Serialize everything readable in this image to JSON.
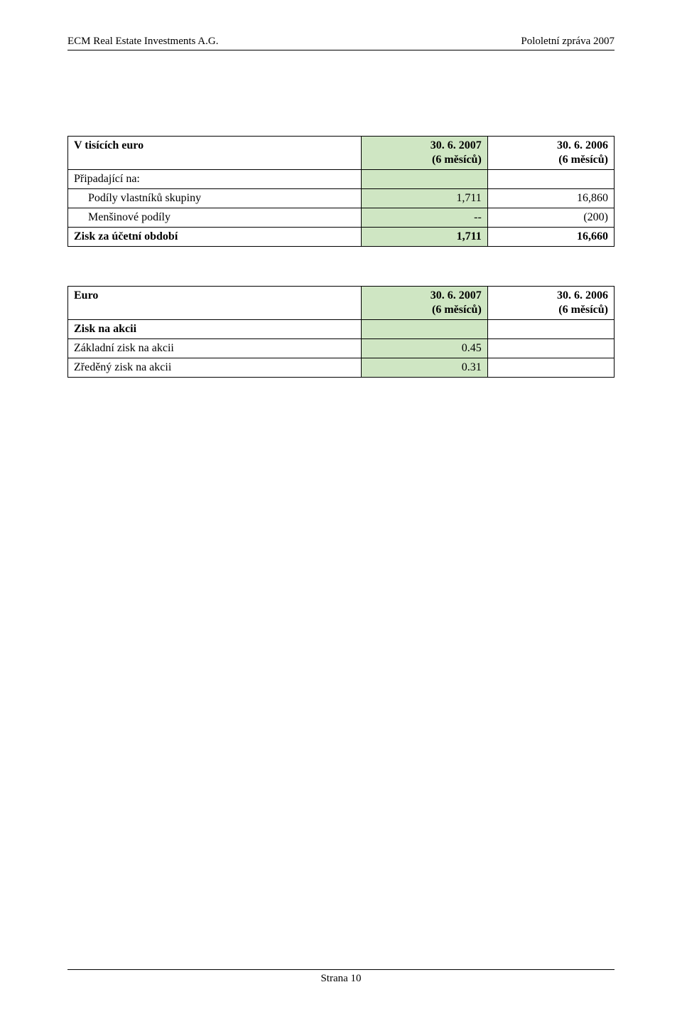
{
  "header": {
    "left": "ECM Real Estate Investments A.G.",
    "right": "Pololetní zpráva 2007"
  },
  "colors": {
    "highlight_bg": "#cfe6c3",
    "page_bg": "#ffffff",
    "border": "#000000",
    "text": "#000000"
  },
  "table1": {
    "columns": {
      "label": "V tisících euro",
      "col1_line1": "30. 6. 2007",
      "col1_line2": "(6 měsíců)",
      "col2_line1": "30. 6. 2006",
      "col2_line2": "(6 měsíců)"
    },
    "rows": [
      {
        "label": "Připadající na:",
        "v1": "",
        "v2": "",
        "indent": false,
        "bold": false
      },
      {
        "label": "Podíly vlastníků skupiny",
        "v1": "1,711",
        "v2": "16,860",
        "indent": true,
        "bold": false
      },
      {
        "label": "Menšinové podíly",
        "v1": "--",
        "v2": "(200)",
        "indent": true,
        "bold": false
      },
      {
        "label": "Zisk  za účetní období",
        "v1": "1,711",
        "v2": "16,660",
        "indent": false,
        "bold": true
      }
    ]
  },
  "table2": {
    "columns": {
      "label": "Euro",
      "col1_line1": "30. 6. 2007",
      "col1_line2": "(6 měsíců)",
      "col2_line1": "30. 6. 2006",
      "col2_line2": "(6 měsíců)"
    },
    "rows": [
      {
        "label": "Zisk na akcii",
        "v1": "",
        "v2": "",
        "bold": true
      },
      {
        "label": "Základní zisk na akcii",
        "v1": "0.45",
        "v2": "",
        "bold": false
      },
      {
        "label": "Zředěný zisk na akcii",
        "v1": "0.31",
        "v2": "",
        "bold": false
      }
    ]
  },
  "footer": "Strana 10"
}
